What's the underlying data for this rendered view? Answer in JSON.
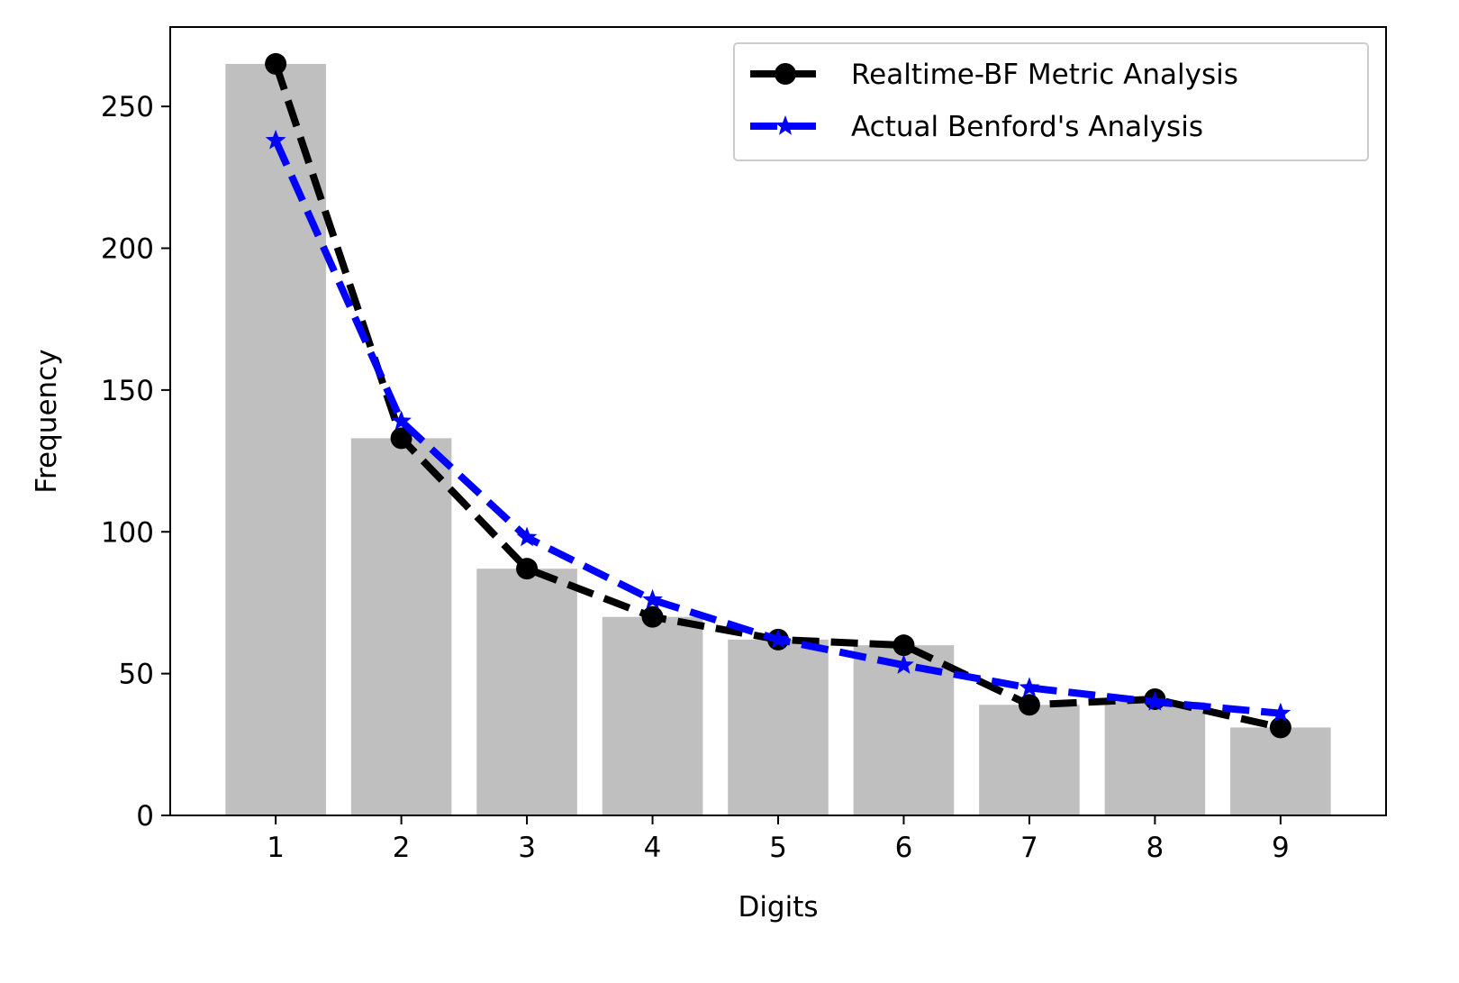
{
  "chart_data": {
    "type": "bar",
    "title": "",
    "xlabel": "Digits",
    "ylabel": "Frequency",
    "categories": [
      "1",
      "2",
      "3",
      "4",
      "5",
      "6",
      "7",
      "8",
      "9"
    ],
    "x": [
      1,
      2,
      3,
      4,
      5,
      6,
      7,
      8,
      9
    ],
    "xlim": [
      0.16,
      9.84
    ],
    "ylim": [
      0,
      278
    ],
    "yticks": [
      0,
      50,
      100,
      150,
      200,
      250
    ],
    "grid": false,
    "legend_position": "top-right",
    "bars": {
      "values": [
        265,
        133,
        87,
        70,
        62,
        60,
        39,
        40,
        31
      ],
      "color": "#bfbfbf"
    },
    "series": [
      {
        "name": "Realtime-BF Metric Analysis",
        "type": "line",
        "values": [
          265,
          133,
          87,
          70,
          62,
          60,
          39,
          41,
          31
        ],
        "color": "#000000",
        "marker": "circle",
        "linestyle": "dashed"
      },
      {
        "name": "Actual Benford's Analysis",
        "type": "line",
        "values": [
          238,
          139,
          98,
          76,
          62,
          53,
          45,
          40,
          36
        ],
        "color": "#0000ff",
        "marker": "star",
        "linestyle": "dashed"
      }
    ]
  }
}
